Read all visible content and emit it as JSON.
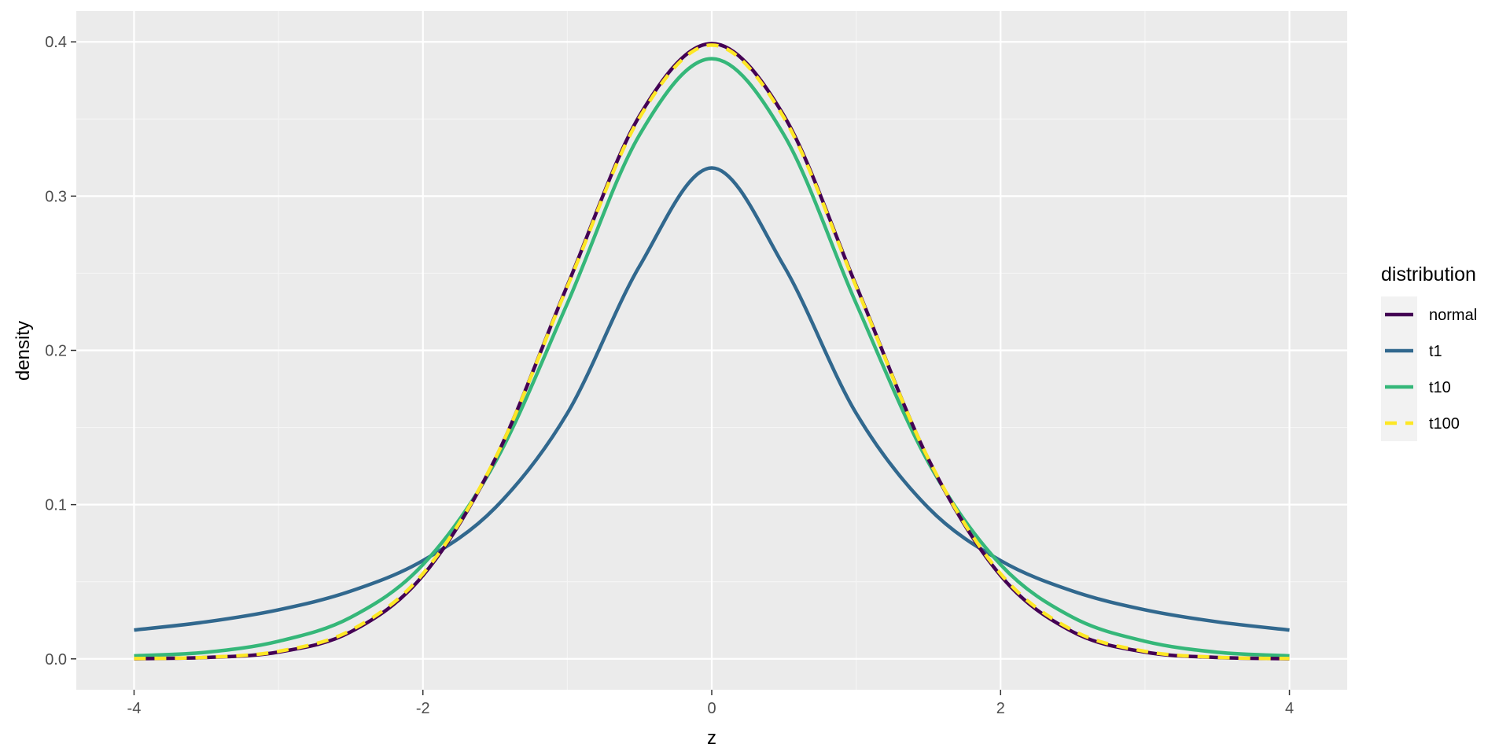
{
  "chart_data": {
    "type": "line",
    "xlabel": "z",
    "ylabel": "density",
    "xlim": [
      -4.4,
      4.4
    ],
    "ylim": [
      -0.02,
      0.42
    ],
    "x_ticks": [
      -4,
      -2,
      0,
      2,
      4
    ],
    "x_tick_labels": [
      "-4",
      "-2",
      "0",
      "2",
      "4"
    ],
    "y_ticks": [
      0.0,
      0.1,
      0.2,
      0.3,
      0.4
    ],
    "y_tick_labels": [
      "0.0",
      "0.1",
      "0.2",
      "0.3",
      "0.4"
    ],
    "grid": true,
    "legend": {
      "title": "distribution",
      "position": "right"
    },
    "x": [
      -4.0,
      -3.5,
      -3.0,
      -2.5,
      -2.0,
      -1.5,
      -1.0,
      -0.5,
      0.0,
      0.5,
      1.0,
      1.5,
      2.0,
      2.5,
      3.0,
      3.5,
      4.0
    ],
    "series": [
      {
        "name": "normal",
        "color": "#440154",
        "dash": false,
        "values": [
          0.0001,
          0.0009,
          0.0044,
          0.0175,
          0.054,
          0.1295,
          0.242,
          0.3521,
          0.3989,
          0.3521,
          0.242,
          0.1295,
          0.054,
          0.0175,
          0.0044,
          0.0009,
          0.0001
        ]
      },
      {
        "name": "t1",
        "color": "#31688E",
        "dash": false,
        "values": [
          0.0187,
          0.024,
          0.0318,
          0.0439,
          0.0637,
          0.0979,
          0.1592,
          0.2546,
          0.3183,
          0.2546,
          0.1592,
          0.0979,
          0.0637,
          0.0439,
          0.0318,
          0.024,
          0.0187
        ]
      },
      {
        "name": "t10",
        "color": "#35B779",
        "dash": false,
        "values": [
          0.002,
          0.0043,
          0.0114,
          0.0269,
          0.0611,
          0.1274,
          0.2304,
          0.3397,
          0.3891,
          0.3397,
          0.2304,
          0.1274,
          0.0611,
          0.0269,
          0.0114,
          0.0043,
          0.002
        ]
      },
      {
        "name": "t100",
        "color": "#FDE725",
        "dash": true,
        "values": [
          0.0002,
          0.001,
          0.0049,
          0.0185,
          0.0552,
          0.1297,
          0.2413,
          0.3509,
          0.3979,
          0.3509,
          0.2413,
          0.1297,
          0.0552,
          0.0185,
          0.0049,
          0.001,
          0.0002
        ]
      }
    ]
  }
}
